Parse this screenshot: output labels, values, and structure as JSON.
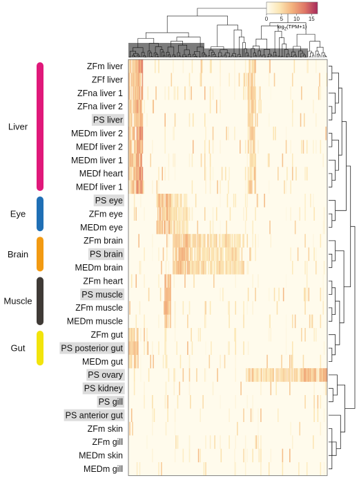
{
  "chart_data": {
    "type": "heatmap",
    "title": "",
    "colorbar": {
      "title": "log2(TPM+1)",
      "title_base": "log",
      "title_sub": "2",
      "title_rest": "(TPM+1)",
      "min": 0,
      "max": 17,
      "ticks": [
        "0",
        "5",
        "10",
        "15"
      ],
      "colors": [
        "#fffdf2",
        "#fce7b5",
        "#f3b27e",
        "#df7766",
        "#a6295b"
      ]
    },
    "rows": [
      {
        "label": "ZFm liver",
        "highlight": false,
        "group": 0
      },
      {
        "label": "ZFf liver",
        "highlight": false,
        "group": 0
      },
      {
        "label": "ZFna liver 1",
        "highlight": false,
        "group": 0
      },
      {
        "label": "ZFna liver 2",
        "highlight": false,
        "group": 0
      },
      {
        "label": "PS liver",
        "highlight": true,
        "group": 0
      },
      {
        "label": "MEDm liver 2",
        "highlight": false,
        "group": 0
      },
      {
        "label": "MEDf liver 2",
        "highlight": false,
        "group": 0
      },
      {
        "label": "MEDm liver 1",
        "highlight": false,
        "group": 0
      },
      {
        "label": "MEDf heart",
        "highlight": false,
        "group": 0
      },
      {
        "label": "MEDf liver 1",
        "highlight": false,
        "group": 0
      },
      {
        "label": "PS eye",
        "highlight": true,
        "group": 1
      },
      {
        "label": "ZFm eye",
        "highlight": false,
        "group": 1
      },
      {
        "label": "MEDm eye",
        "highlight": false,
        "group": 1
      },
      {
        "label": "ZFm brain",
        "highlight": false,
        "group": 2
      },
      {
        "label": "PS brain",
        "highlight": true,
        "group": 2
      },
      {
        "label": "MEDm brain",
        "highlight": false,
        "group": 2
      },
      {
        "label": "ZFm heart",
        "highlight": false,
        "group": 3
      },
      {
        "label": "PS muscle",
        "highlight": true,
        "group": 3
      },
      {
        "label": "ZFm muscle",
        "highlight": false,
        "group": 3
      },
      {
        "label": "MEDm muscle",
        "highlight": false,
        "group": 3
      },
      {
        "label": "ZFm gut",
        "highlight": false,
        "group": 4
      },
      {
        "label": "PS posterior gut",
        "highlight": true,
        "group": 4
      },
      {
        "label": "MEDm gut",
        "highlight": false,
        "group": 4
      },
      {
        "label": "PS ovary",
        "highlight": true,
        "group": 5
      },
      {
        "label": "PS kidney",
        "highlight": true,
        "group": 6
      },
      {
        "label": "PS gill",
        "highlight": true,
        "group": 7
      },
      {
        "label": "PS anterior gut",
        "highlight": true,
        "group": 8
      },
      {
        "label": "ZFm skin",
        "highlight": false,
        "group": 9
      },
      {
        "label": "ZFm gill",
        "highlight": false,
        "group": 10
      },
      {
        "label": "MEDm skin",
        "highlight": false,
        "group": 9
      },
      {
        "label": "MEDm gill",
        "highlight": false,
        "group": 10
      }
    ],
    "groups": [
      {
        "label": "Liver",
        "color": "#e0187a",
        "first_row": 0,
        "last_row": 9
      },
      {
        "label": "Eye",
        "color": "#1f6fb5",
        "first_row": 10,
        "last_row": 12
      },
      {
        "label": "Brain",
        "color": "#f29a12",
        "first_row": 13,
        "last_row": 15
      },
      {
        "label": "Muscle",
        "color": "#3f3a36",
        "first_row": 16,
        "last_row": 19
      },
      {
        "label": "Gut",
        "color": "#f2e40c",
        "first_row": 20,
        "last_row": 22
      }
    ],
    "expression_blocks": [
      {
        "group": 0,
        "col_start": 0.0,
        "col_end": 0.06,
        "level": 8
      },
      {
        "group": 0,
        "col_start": 0.04,
        "col_end": 0.07,
        "level": 11
      },
      {
        "group": 0,
        "col_start": 0.6,
        "col_end": 0.64,
        "level": 7
      },
      {
        "group": 1,
        "col_start": 0.14,
        "col_end": 0.21,
        "level": 8
      },
      {
        "group": 1,
        "col_start": 0.21,
        "col_end": 0.3,
        "level": 5
      },
      {
        "group": 2,
        "col_start": 0.22,
        "col_end": 0.58,
        "level": 6
      },
      {
        "group": 2,
        "col_start": 0.24,
        "col_end": 0.3,
        "level": 8
      },
      {
        "group": 3,
        "col_start": 0.18,
        "col_end": 0.21,
        "level": 9
      },
      {
        "group": 4,
        "col_start": 0.0,
        "col_end": 0.05,
        "level": 7
      },
      {
        "group": 5,
        "col_start": 0.6,
        "col_end": 1.0,
        "level": 6
      },
      {
        "group": 5,
        "col_start": 0.86,
        "col_end": 1.0,
        "level": 9
      }
    ]
  }
}
